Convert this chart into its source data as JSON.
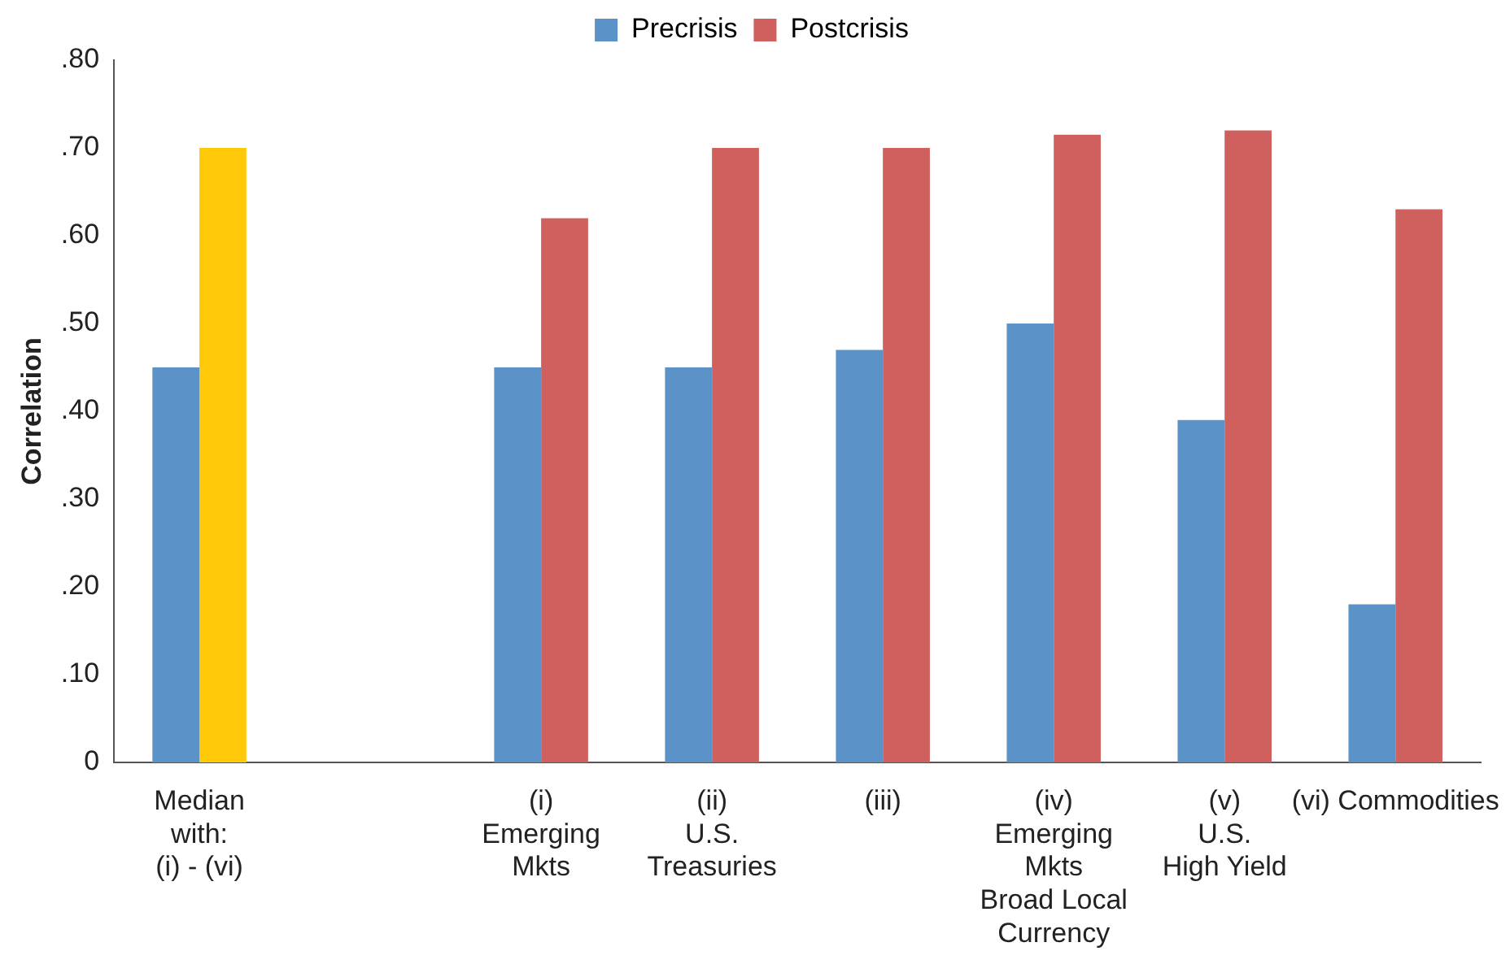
{
  "chart_data": {
    "type": "bar",
    "ylabel": "Correlation",
    "categories": [
      "Median\nwith:\n(i) - (vi)",
      null,
      "(i)\nEmerging\nMkts",
      "(ii)\nU.S.\nTreasuries",
      "(iii)",
      "(iv)\nEmerging\nMkts\nBroad Local\nCurrency",
      "(v)\nU.S.\nHigh Yield",
      "(vi) Commodities"
    ],
    "series": [
      {
        "name": "Precrisis",
        "color": "#5b93c8",
        "values": [
          0.45,
          null,
          0.45,
          0.45,
          0.47,
          0.5,
          0.39,
          0.18
        ]
      },
      {
        "name": "Postcrisis",
        "color": "#d0605e",
        "colors": [
          "#ffc90a",
          "#d0605e",
          "#d0605e",
          "#d0605e",
          "#d0605e",
          "#d0605e",
          "#d0605e",
          "#d0605e"
        ],
        "values": [
          0.7,
          null,
          0.62,
          0.7,
          0.7,
          0.715,
          0.72,
          0.63
        ]
      }
    ],
    "ylim": [
      0,
      0.8
    ],
    "yticks": [
      0,
      {
        "value": 0.1,
        "label": ".10"
      },
      {
        "value": 0.2,
        "label": ".20"
      },
      {
        "value": 0.3,
        "label": ".30"
      },
      {
        "value": 0.4,
        "label": ".40"
      },
      {
        "value": 0.5,
        "label": ".50"
      },
      {
        "value": 0.6,
        "label": ".60"
      },
      {
        "value": 0.7,
        "label": ".70"
      },
      {
        "value": 0.8,
        "label": ".80"
      }
    ],
    "grid": false,
    "legend": "top"
  }
}
